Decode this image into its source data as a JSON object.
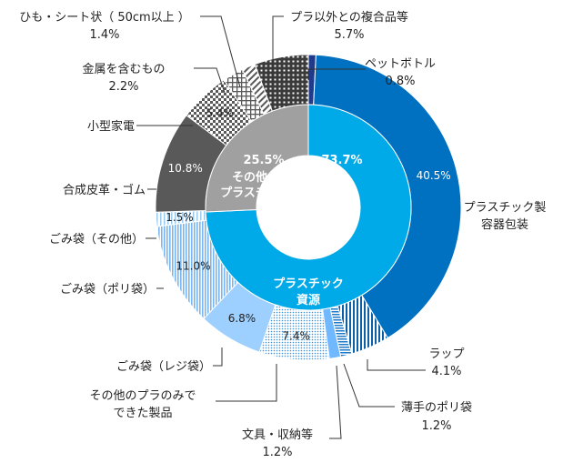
{
  "chart_data": {
    "type": "pie",
    "inner_ring": [
      {
        "name": "プラスチック資源",
        "value": 73.7,
        "label": "73.7%",
        "color": "#00a9e8"
      },
      {
        "name": "その他のプラスチック",
        "value": 25.5,
        "label": "25.5%",
        "color": "#a0a0a0"
      }
    ],
    "outer_ring": [
      {
        "name": "ペットボトル",
        "value": 0.8,
        "label": "0.8%",
        "color": "#1f3a8a",
        "pattern": "solid"
      },
      {
        "name": "プラスチック製容器包装",
        "value": 40.5,
        "label": "40.5%",
        "color": "#0070c0",
        "pattern": "solid"
      },
      {
        "name": "ラップ",
        "value": 4.1,
        "label": "4.1%",
        "color": "#0070c0",
        "pattern": "vlines"
      },
      {
        "name": "薄手のポリ袋",
        "value": 1.2,
        "label": "1.2%",
        "color": "#1f7ac8",
        "pattern": "hlines"
      },
      {
        "name": "文具・収納等",
        "value": 1.2,
        "label": "1.2%",
        "color": "#70b8ff",
        "pattern": "solid-light"
      },
      {
        "name": "その他のプラのみでできた製品",
        "value": 7.4,
        "label": "7.4%",
        "color": "#5aa9e6",
        "pattern": "dots"
      },
      {
        "name": "ごみ袋（レジ袋）",
        "value": 6.8,
        "label": "6.8%",
        "color": "#9ed0ff",
        "pattern": "solid"
      },
      {
        "name": "ごみ袋（ポリ袋）",
        "value": 11.0,
        "label": "11.0%",
        "color": "#7ab6ec",
        "pattern": "stripes"
      },
      {
        "name": "ごみ袋（その他）",
        "value": 1.5,
        "label": "1.5%",
        "color": "#9ccbf0",
        "pattern": "vlines-light"
      },
      {
        "name": "合成皮革・ゴム",
        "value": 10.8,
        "label": "10.8%",
        "color": "#595959",
        "pattern": "solid"
      },
      {
        "name": "小型家電",
        "value": 5.4,
        "label": "5.4%",
        "color": "#595959",
        "pattern": "checker"
      },
      {
        "name": "金属を含むもの",
        "value": 2.2,
        "label": "2.2%",
        "color": "#595959",
        "pattern": "grid"
      },
      {
        "name": "ひも・シート状（ 50cm以上 ）",
        "value": 1.4,
        "label": "1.4%",
        "color": "#595959",
        "pattern": "dlines"
      },
      {
        "name": "プラ以外との複合品等",
        "value": 5.7,
        "label": "5.7%",
        "color": "#404040",
        "pattern": "grid-dark"
      }
    ],
    "center_labels": {
      "plastic_resource": [
        "プラスチック",
        "資源"
      ],
      "other_plastic": [
        "その他の",
        "プラスチック"
      ]
    },
    "external_labels": {
      "pet": [
        "ペットボトル",
        "0.8%"
      ],
      "container": [
        "プラスチック製",
        "容器包装"
      ],
      "wrap": [
        "ラップ",
        "4.1%"
      ],
      "thinbag": [
        "薄手のポリ袋",
        "1.2%"
      ],
      "stationery": [
        "文具・収納等",
        "1.2%"
      ],
      "otherpla": [
        "その他のプラのみで",
        "できた製品"
      ],
      "regibag": "ごみ袋（レジ袋）",
      "polybag": "ごみ袋（ポリ袋）",
      "otherbag": "ごみ袋（その他）",
      "leather": "合成皮革・ゴム",
      "appliance": "小型家電",
      "metal": [
        "金属を含むもの",
        "2.2%"
      ],
      "string": [
        "ひも・シート状（ 50cm以上 ）",
        "1.4%"
      ],
      "composite": [
        "プラ以外との複合品等",
        "5.7%"
      ]
    }
  }
}
